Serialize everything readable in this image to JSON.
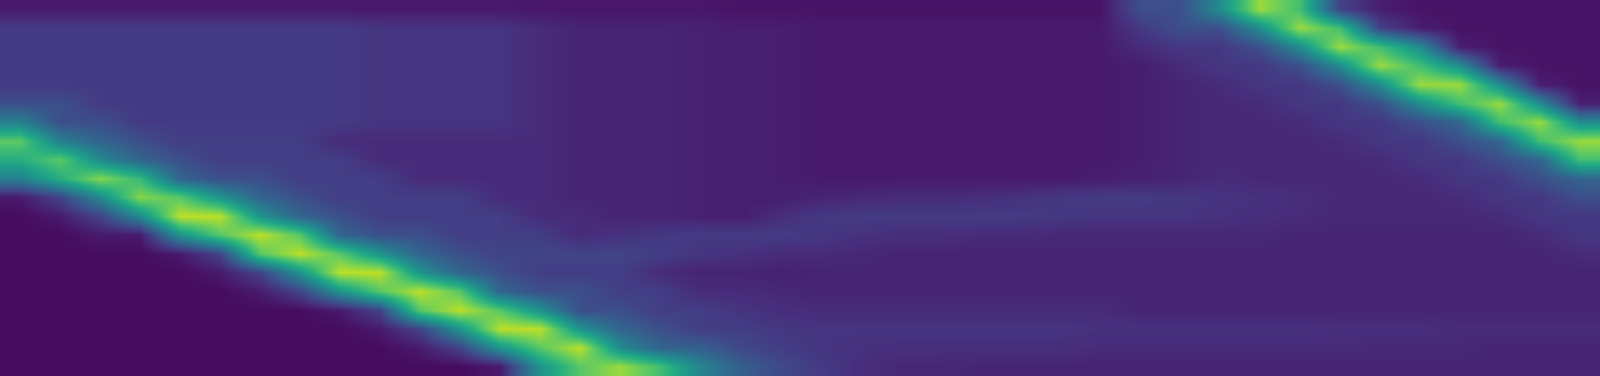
{
  "chart_data": {
    "type": "heatmap",
    "color": "Viridis",
    "tick_labels": false,
    "zlim": [
      0,
      1
    ],
    "cells": [
      [
        0.07,
        0.07,
        0.07,
        0.07,
        0.07,
        0.07,
        0.07,
        0.07,
        0.07,
        0.07,
        0.07,
        0.07,
        0.07,
        0.06,
        0.06,
        0.06,
        0.06,
        0.06,
        0.05,
        0.05,
        0.05,
        0.05,
        0.05,
        0.05,
        0.05,
        0.05,
        0.05,
        0.05,
        0.24,
        0.24,
        0.48,
        0.85,
        0.7,
        0.2,
        0.08,
        0.05,
        0.05,
        0.05,
        0.05,
        0.05
      ],
      [
        0.17,
        0.17,
        0.17,
        0.17,
        0.17,
        0.17,
        0.17,
        0.17,
        0.17,
        0.15,
        0.15,
        0.15,
        0.15,
        0.12,
        0.1,
        0.1,
        0.1,
        0.09,
        0.08,
        0.08,
        0.07,
        0.07,
        0.07,
        0.07,
        0.07,
        0.07,
        0.07,
        0.07,
        0.16,
        0.24,
        0.24,
        0.48,
        0.85,
        0.7,
        0.2,
        0.08,
        0.05,
        0.05,
        0.05,
        0.05
      ],
      [
        0.17,
        0.17,
        0.17,
        0.17,
        0.17,
        0.17,
        0.17,
        0.17,
        0.17,
        0.15,
        0.15,
        0.15,
        0.15,
        0.12,
        0.1,
        0.1,
        0.1,
        0.09,
        0.08,
        0.08,
        0.07,
        0.07,
        0.07,
        0.07,
        0.07,
        0.07,
        0.07,
        0.07,
        0.12,
        0.16,
        0.16,
        0.24,
        0.48,
        0.85,
        0.7,
        0.48,
        0.08,
        0.05,
        0.05,
        0.05
      ],
      [
        0.17,
        0.17,
        0.17,
        0.17,
        0.17,
        0.17,
        0.17,
        0.17,
        0.17,
        0.15,
        0.15,
        0.15,
        0.15,
        0.12,
        0.1,
        0.1,
        0.1,
        0.09,
        0.08,
        0.08,
        0.07,
        0.07,
        0.07,
        0.07,
        0.07,
        0.07,
        0.07,
        0.07,
        0.08,
        0.12,
        0.16,
        0.16,
        0.24,
        0.48,
        0.85,
        0.7,
        0.48,
        0.08,
        0.05,
        0.05
      ],
      [
        0.17,
        0.17,
        0.17,
        0.17,
        0.17,
        0.17,
        0.17,
        0.17,
        0.17,
        0.15,
        0.15,
        0.15,
        0.15,
        0.12,
        0.1,
        0.1,
        0.1,
        0.09,
        0.08,
        0.08,
        0.07,
        0.07,
        0.07,
        0.07,
        0.07,
        0.07,
        0.07,
        0.07,
        0.08,
        0.1,
        0.12,
        0.16,
        0.16,
        0.24,
        0.48,
        0.85,
        0.85,
        0.48,
        0.08,
        0.05
      ],
      [
        0.24,
        0.24,
        0.17,
        0.17,
        0.17,
        0.17,
        0.17,
        0.17,
        0.17,
        0.15,
        0.15,
        0.15,
        0.15,
        0.12,
        0.1,
        0.1,
        0.1,
        0.09,
        0.08,
        0.08,
        0.07,
        0.07,
        0.07,
        0.07,
        0.07,
        0.07,
        0.07,
        0.07,
        0.08,
        0.1,
        0.11,
        0.12,
        0.16,
        0.16,
        0.24,
        0.48,
        0.7,
        0.85,
        0.48,
        0.08
      ],
      [
        0.43,
        0.24,
        0.24,
        0.17,
        0.17,
        0.17,
        0.17,
        0.17,
        0.17,
        0.15,
        0.15,
        0.15,
        0.15,
        0.12,
        0.1,
        0.1,
        0.1,
        0.09,
        0.08,
        0.08,
        0.07,
        0.07,
        0.07,
        0.07,
        0.07,
        0.07,
        0.07,
        0.07,
        0.08,
        0.1,
        0.11,
        0.11,
        0.12,
        0.16,
        0.16,
        0.24,
        0.32,
        0.7,
        0.85,
        0.48
      ],
      [
        0.75,
        0.43,
        0.32,
        0.24,
        0.18,
        0.18,
        0.18,
        0.18,
        0.12,
        0.12,
        0.12,
        0.12,
        0.12,
        0.12,
        0.1,
        0.1,
        0.1,
        0.09,
        0.08,
        0.08,
        0.07,
        0.07,
        0.07,
        0.07,
        0.07,
        0.07,
        0.07,
        0.07,
        0.08,
        0.1,
        0.11,
        0.11,
        0.11,
        0.12,
        0.16,
        0.16,
        0.24,
        0.32,
        0.7,
        0.85
      ],
      [
        0.62,
        0.75,
        0.47,
        0.32,
        0.24,
        0.18,
        0.18,
        0.18,
        0.18,
        0.12,
        0.12,
        0.12,
        0.12,
        0.12,
        0.1,
        0.1,
        0.1,
        0.09,
        0.08,
        0.08,
        0.07,
        0.07,
        0.07,
        0.07,
        0.07,
        0.07,
        0.07,
        0.07,
        0.08,
        0.1,
        0.11,
        0.11,
        0.11,
        0.11,
        0.12,
        0.16,
        0.16,
        0.24,
        0.32,
        0.7
      ],
      [
        0.43,
        0.62,
        0.82,
        0.67,
        0.32,
        0.24,
        0.24,
        0.18,
        0.18,
        0.18,
        0.12,
        0.12,
        0.12,
        0.12,
        0.1,
        0.1,
        0.1,
        0.09,
        0.08,
        0.08,
        0.07,
        0.07,
        0.07,
        0.07,
        0.07,
        0.07,
        0.07,
        0.08,
        0.09,
        0.1,
        0.12,
        0.11,
        0.11,
        0.11,
        0.11,
        0.12,
        0.16,
        0.16,
        0.24,
        0.32
      ],
      [
        0.07,
        0.2,
        0.47,
        0.82,
        0.74,
        0.51,
        0.32,
        0.24,
        0.18,
        0.18,
        0.18,
        0.18,
        0.12,
        0.12,
        0.1,
        0.1,
        0.1,
        0.09,
        0.08,
        0.08,
        0.1,
        0.11,
        0.12,
        0.12,
        0.13,
        0.14,
        0.16,
        0.17,
        0.17,
        0.16,
        0.15,
        0.14,
        0.13,
        0.11,
        0.11,
        0.11,
        0.12,
        0.16,
        0.16,
        0.24
      ],
      [
        0.03,
        0.07,
        0.2,
        0.47,
        0.9,
        0.9,
        0.51,
        0.32,
        0.24,
        0.18,
        0.18,
        0.18,
        0.18,
        0.12,
        0.12,
        0.1,
        0.1,
        0.09,
        0.08,
        0.13,
        0.16,
        0.17,
        0.17,
        0.17,
        0.17,
        0.17,
        0.16,
        0.15,
        0.15,
        0.15,
        0.14,
        0.13,
        0.12,
        0.11,
        0.11,
        0.11,
        0.11,
        0.12,
        0.16,
        0.16
      ],
      [
        0.03,
        0.03,
        0.07,
        0.07,
        0.51,
        0.74,
        0.9,
        0.74,
        0.32,
        0.24,
        0.24,
        0.18,
        0.18,
        0.18,
        0.12,
        0.14,
        0.16,
        0.17,
        0.17,
        0.17,
        0.16,
        0.14,
        0.13,
        0.13,
        0.12,
        0.12,
        0.11,
        0.11,
        0.11,
        0.11,
        0.11,
        0.11,
        0.1,
        0.1,
        0.1,
        0.1,
        0.1,
        0.1,
        0.12,
        0.16
      ],
      [
        0.03,
        0.03,
        0.03,
        0.03,
        0.07,
        0.2,
        0.74,
        0.9,
        0.74,
        0.51,
        0.32,
        0.24,
        0.2,
        0.2,
        0.2,
        0.2,
        0.18,
        0.15,
        0.14,
        0.12,
        0.12,
        0.11,
        0.1,
        0.1,
        0.1,
        0.1,
        0.1,
        0.1,
        0.1,
        0.1,
        0.1,
        0.1,
        0.1,
        0.1,
        0.1,
        0.1,
        0.1,
        0.1,
        0.1,
        0.12
      ],
      [
        0.03,
        0.03,
        0.03,
        0.03,
        0.03,
        0.07,
        0.2,
        0.51,
        0.9,
        0.9,
        0.51,
        0.32,
        0.24,
        0.18,
        0.18,
        0.18,
        0.12,
        0.1,
        0.1,
        0.09,
        0.1,
        0.1,
        0.1,
        0.1,
        0.1,
        0.1,
        0.1,
        0.1,
        0.1,
        0.1,
        0.1,
        0.1,
        0.1,
        0.1,
        0.1,
        0.1,
        0.1,
        0.1,
        0.1,
        0.1
      ],
      [
        0.03,
        0.03,
        0.03,
        0.03,
        0.03,
        0.03,
        0.07,
        0.2,
        0.51,
        0.74,
        0.9,
        0.74,
        0.32,
        0.24,
        0.24,
        0.18,
        0.18,
        0.12,
        0.12,
        0.11,
        0.1,
        0.1,
        0.1,
        0.1,
        0.1,
        0.1,
        0.1,
        0.1,
        0.1,
        0.1,
        0.1,
        0.1,
        0.1,
        0.1,
        0.1,
        0.1,
        0.1,
        0.1,
        0.1,
        0.1
      ],
      [
        0.03,
        0.03,
        0.03,
        0.03,
        0.03,
        0.03,
        0.03,
        0.03,
        0.07,
        0.2,
        0.74,
        0.9,
        0.74,
        0.51,
        0.24,
        0.24,
        0.18,
        0.18,
        0.15,
        0.13,
        0.12,
        0.12,
        0.12,
        0.12,
        0.12,
        0.12,
        0.12,
        0.12,
        0.1,
        0.1,
        0.1,
        0.1,
        0.1,
        0.1,
        0.1,
        0.1,
        0.1,
        0.1,
        0.1,
        0.1
      ],
      [
        0.03,
        0.03,
        0.03,
        0.03,
        0.03,
        0.03,
        0.03,
        0.03,
        0.03,
        0.07,
        0.2,
        0.51,
        0.9,
        0.9,
        0.51,
        0.32,
        0.24,
        0.18,
        0.18,
        0.16,
        0.15,
        0.15,
        0.15,
        0.15,
        0.15,
        0.15,
        0.15,
        0.14,
        0.14,
        0.14,
        0.14,
        0.14,
        0.14,
        0.13,
        0.13,
        0.13,
        0.12,
        0.12,
        0.12,
        0.12
      ],
      [
        0.03,
        0.03,
        0.03,
        0.03,
        0.03,
        0.03,
        0.03,
        0.03,
        0.03,
        0.03,
        0.07,
        0.2,
        0.51,
        0.74,
        0.9,
        0.48,
        0.32,
        0.3,
        0.22,
        0.18,
        0.15,
        0.14,
        0.13,
        0.13,
        0.13,
        0.13,
        0.13,
        0.12,
        0.12,
        0.12,
        0.12,
        0.12,
        0.12,
        0.12,
        0.11,
        0.11,
        0.11,
        0.1,
        0.1,
        0.1
      ],
      [
        0.03,
        0.03,
        0.03,
        0.03,
        0.03,
        0.03,
        0.03,
        0.03,
        0.03,
        0.03,
        0.03,
        0.03,
        0.07,
        0.51,
        0.74,
        0.85,
        0.7,
        0.45,
        0.3,
        0.22,
        0.17,
        0.13,
        0.11,
        0.11,
        0.1,
        0.1,
        0.1,
        0.1,
        0.1,
        0.1,
        0.1,
        0.1,
        0.1,
        0.1,
        0.1,
        0.1,
        0.1,
        0.1,
        0.1,
        0.1
      ]
    ]
  }
}
